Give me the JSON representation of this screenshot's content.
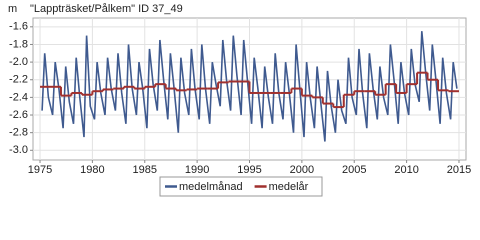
{
  "chart_data": {
    "type": "line",
    "title": "\"Lappträsket/Pålkem\" ID 37_49",
    "y_label": "m",
    "y_inverted": true,
    "grid": true,
    "legend": "bottom",
    "xlim": [
      1974.33,
      2015.67
    ],
    "xticks": [
      1975,
      1980,
      1985,
      1990,
      1995,
      2000,
      2005,
      2010,
      2015
    ],
    "ylim": [
      -3.11,
      -1.5
    ],
    "yticks": [
      -1.6,
      -1.8,
      {
        "value": -2,
        "label": "-2.0"
      },
      -2.2,
      -2.4,
      -2.6,
      -2.8,
      {
        "value": -3,
        "label": "-3.0"
      }
    ],
    "series": [
      {
        "name": "medelmånad",
        "color": "#3f5a8f",
        "step": false,
        "x": [
          1975.2,
          1975.45,
          1975.8,
          1976.2,
          1976.45,
          1976.8,
          1977.2,
          1977.45,
          1977.8,
          1978.2,
          1978.45,
          1978.8,
          1979.2,
          1979.45,
          1979.8,
          1980.2,
          1980.45,
          1980.8,
          1981.2,
          1981.45,
          1981.8,
          1982.2,
          1982.45,
          1982.8,
          1983.2,
          1983.45,
          1983.8,
          1984.2,
          1984.45,
          1984.8,
          1985.2,
          1985.45,
          1985.8,
          1986.2,
          1986.45,
          1986.8,
          1987.2,
          1987.45,
          1987.8,
          1988.2,
          1988.45,
          1988.8,
          1989.2,
          1989.45,
          1989.8,
          1990.2,
          1990.45,
          1990.8,
          1991.2,
          1991.45,
          1991.8,
          1992.2,
          1992.45,
          1992.8,
          1993.2,
          1993.45,
          1993.8,
          1994.2,
          1994.45,
          1994.8,
          1995.2,
          1995.45,
          1995.8,
          1996.2,
          1996.45,
          1996.8,
          1997.2,
          1997.45,
          1997.8,
          1998.2,
          1998.45,
          1998.8,
          1999.2,
          1999.45,
          1999.8,
          2000.2,
          2000.45,
          2000.8,
          2001.2,
          2001.45,
          2001.8,
          2002.2,
          2002.45,
          2002.8,
          2003.2,
          2003.45,
          2003.8,
          2004.2,
          2004.45,
          2004.8,
          2005.2,
          2005.45,
          2005.8,
          2006.2,
          2006.45,
          2006.8,
          2007.2,
          2007.45,
          2007.8,
          2008.2,
          2008.45,
          2008.8,
          2009.2,
          2009.45,
          2009.8,
          2010.2,
          2010.45,
          2010.8,
          2011.2,
          2011.45,
          2011.8,
          2012.2,
          2012.45,
          2012.8,
          2013.2,
          2013.45,
          2013.8,
          2014.2,
          2014.45,
          2014.8
        ],
        "values": [
          -2.55,
          -1.9,
          -2.4,
          -2.6,
          -2.0,
          -2.3,
          -2.75,
          -2.05,
          -2.45,
          -2.7,
          -1.95,
          -2.4,
          -2.85,
          -1.7,
          -2.5,
          -2.65,
          -2.0,
          -2.35,
          -2.6,
          -1.95,
          -2.3,
          -2.55,
          -1.9,
          -2.35,
          -2.7,
          -1.8,
          -2.3,
          -2.6,
          -2.0,
          -2.3,
          -2.75,
          -1.85,
          -2.25,
          -2.55,
          -1.75,
          -2.2,
          -2.65,
          -1.9,
          -2.3,
          -2.8,
          -1.95,
          -2.35,
          -2.6,
          -1.85,
          -2.3,
          -2.65,
          -1.8,
          -2.3,
          -2.7,
          -2.0,
          -2.25,
          -2.5,
          -1.75,
          -2.2,
          -2.55,
          -1.7,
          -2.15,
          -2.6,
          -1.75,
          -2.2,
          -2.7,
          -1.95,
          -2.3,
          -2.75,
          -2.05,
          -2.4,
          -2.7,
          -1.9,
          -2.35,
          -2.65,
          -2.0,
          -2.35,
          -2.8,
          -1.8,
          -2.3,
          -2.85,
          -2.0,
          -2.4,
          -2.75,
          -2.05,
          -2.45,
          -2.9,
          -2.1,
          -2.5,
          -2.8,
          -2.2,
          -2.55,
          -2.7,
          -1.95,
          -2.4,
          -2.6,
          -1.85,
          -2.35,
          -2.75,
          -1.9,
          -2.3,
          -2.65,
          -2.05,
          -2.4,
          -2.6,
          -1.8,
          -2.2,
          -2.7,
          -2.0,
          -2.35,
          -2.6,
          -1.85,
          -2.25,
          -2.45,
          -1.65,
          -2.1,
          -2.55,
          -1.8,
          -2.2,
          -2.7,
          -1.95,
          -2.35,
          -2.65,
          -2.0,
          -2.3
        ]
      },
      {
        "name": "medelår",
        "color": "#a0302e",
        "step": true,
        "x": [
          1975,
          1976,
          1977,
          1978,
          1979,
          1980,
          1981,
          1982,
          1983,
          1984,
          1985,
          1986,
          1987,
          1988,
          1989,
          1990,
          1991,
          1992,
          1993,
          1994,
          1995,
          1996,
          1997,
          1998,
          1999,
          2000,
          2001,
          2002,
          2003,
          2004,
          2005,
          2006,
          2007,
          2008,
          2009,
          2010,
          2011,
          2012,
          2013,
          2014
        ],
        "values": [
          -2.28,
          -2.28,
          -2.38,
          -2.35,
          -2.37,
          -2.33,
          -2.31,
          -2.3,
          -2.28,
          -2.3,
          -2.28,
          -2.25,
          -2.3,
          -2.32,
          -2.31,
          -2.3,
          -2.3,
          -2.23,
          -2.22,
          -2.22,
          -2.35,
          -2.35,
          -2.35,
          -2.35,
          -2.3,
          -2.38,
          -2.4,
          -2.47,
          -2.51,
          -2.37,
          -2.33,
          -2.33,
          -2.37,
          -2.25,
          -2.35,
          -2.25,
          -2.12,
          -2.2,
          -2.32,
          -2.33
        ]
      }
    ]
  }
}
